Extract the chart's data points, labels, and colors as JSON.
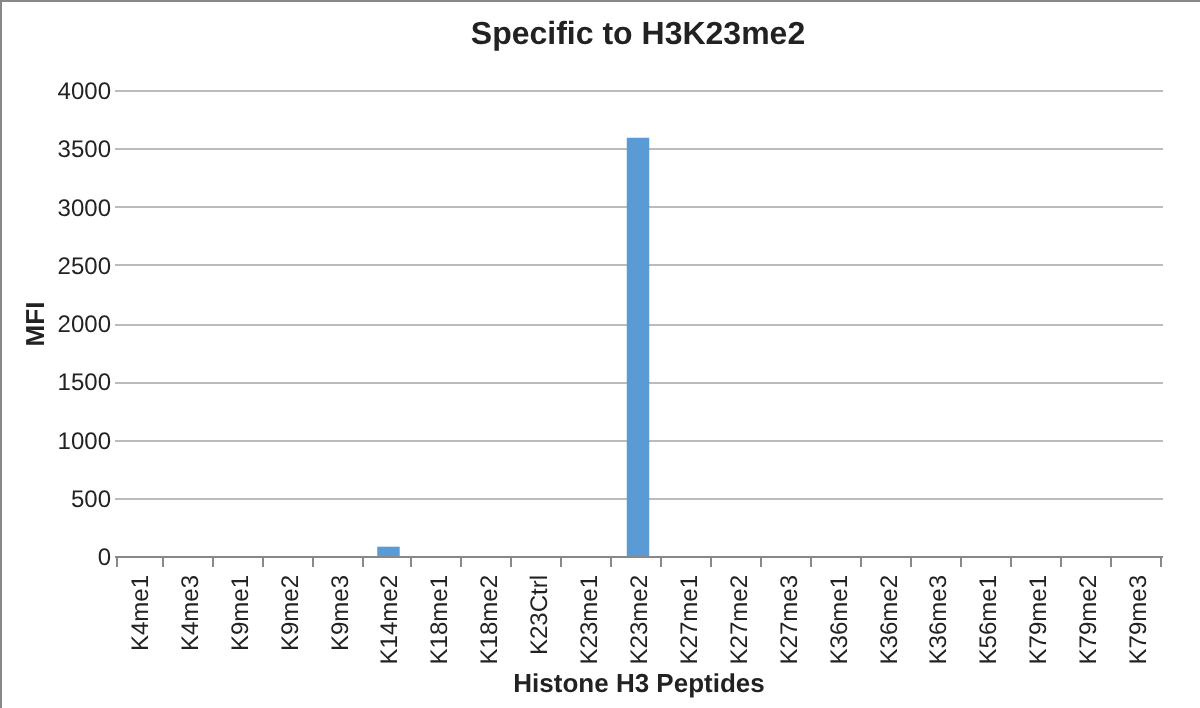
{
  "chart_data": {
    "type": "bar",
    "title": "Specific to H3K23me2",
    "xlabel": "Histone H3 Peptides",
    "ylabel": "MFI",
    "categories": [
      "K4me1",
      "K4me3",
      "K9me1",
      "K9me2",
      "K9me3",
      "K14me2",
      "K18me1",
      "K18me2",
      "K23Ctrl",
      "K23me1",
      "K23me2",
      "K27me1",
      "K27me2",
      "K27me3",
      "K36me1",
      "K36me2",
      "K36me3",
      "K56me1",
      "K79me1",
      "K79me2",
      "K79me3"
    ],
    "values": [
      0,
      0,
      0,
      0,
      0,
      80,
      0,
      0,
      0,
      0,
      3590,
      0,
      0,
      0,
      0,
      0,
      0,
      0,
      0,
      0,
      0
    ],
    "color": "#5b9bd5",
    "ylim": [
      0,
      4000
    ],
    "yticks": [
      0,
      500,
      1000,
      1500,
      2000,
      2500,
      3000,
      3500,
      4000
    ],
    "grid": "y"
  }
}
